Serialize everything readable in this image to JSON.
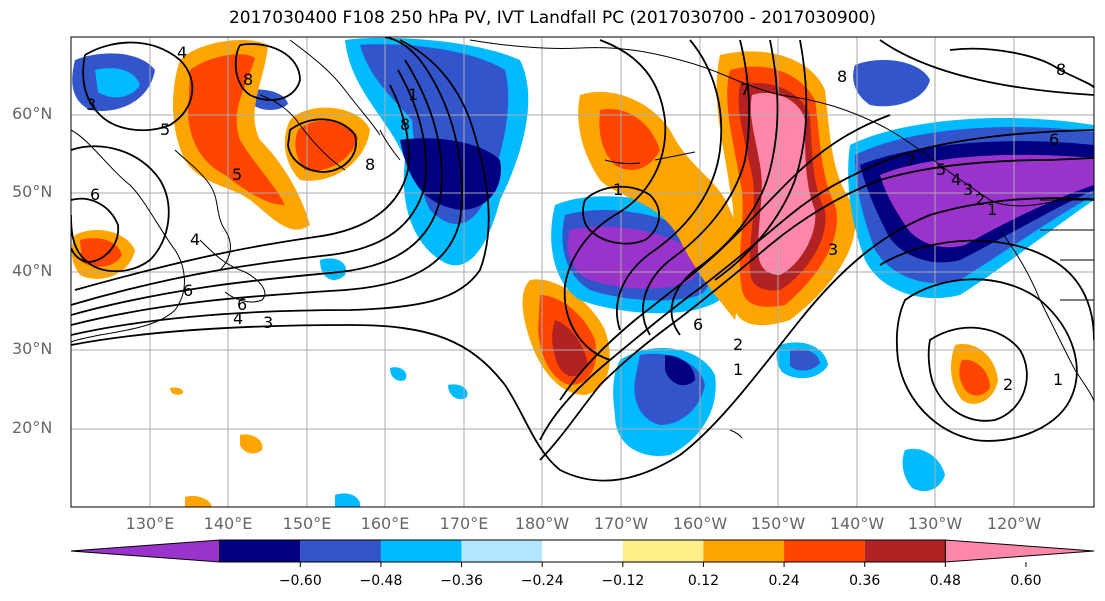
{
  "title": "2017030400 F108 250 hPa PV, IVT Landfall PC (2017030700 - 2017030900)",
  "lat_labels": [
    "60°N",
    "50°N",
    "40°N",
    "30°N",
    "20°N"
  ],
  "lon_labels": [
    "130°E",
    "140°E",
    "150°E",
    "160°E",
    "170°E",
    "180°W",
    "170°W",
    "160°W",
    "150°W",
    "140°W",
    "130°W",
    "120°W"
  ],
  "colorbar": {
    "colors": [
      "#9933cc",
      "#000080",
      "#3355cc",
      "#00bbff",
      "#b3e6ff",
      "#ffffff",
      "#ffee88",
      "#ffa500",
      "#ff4500",
      "#b22222",
      "#ff88aa"
    ],
    "tick_labels": [
      "−0.60",
      "−0.48",
      "−0.36",
      "−0.24",
      "−0.12",
      "0.12",
      "0.24",
      "0.36",
      "0.48",
      "0.60"
    ]
  },
  "contour_labels": [
    "4",
    "8",
    "3",
    "5",
    "6",
    "5",
    "4",
    "6",
    "6",
    "4",
    "3",
    "8",
    "7",
    "8",
    "8",
    "6",
    "3",
    "6",
    "2",
    "1",
    "2",
    "1",
    "1",
    "7",
    "5",
    "4",
    "3",
    "2",
    "1",
    "8",
    "1"
  ]
}
